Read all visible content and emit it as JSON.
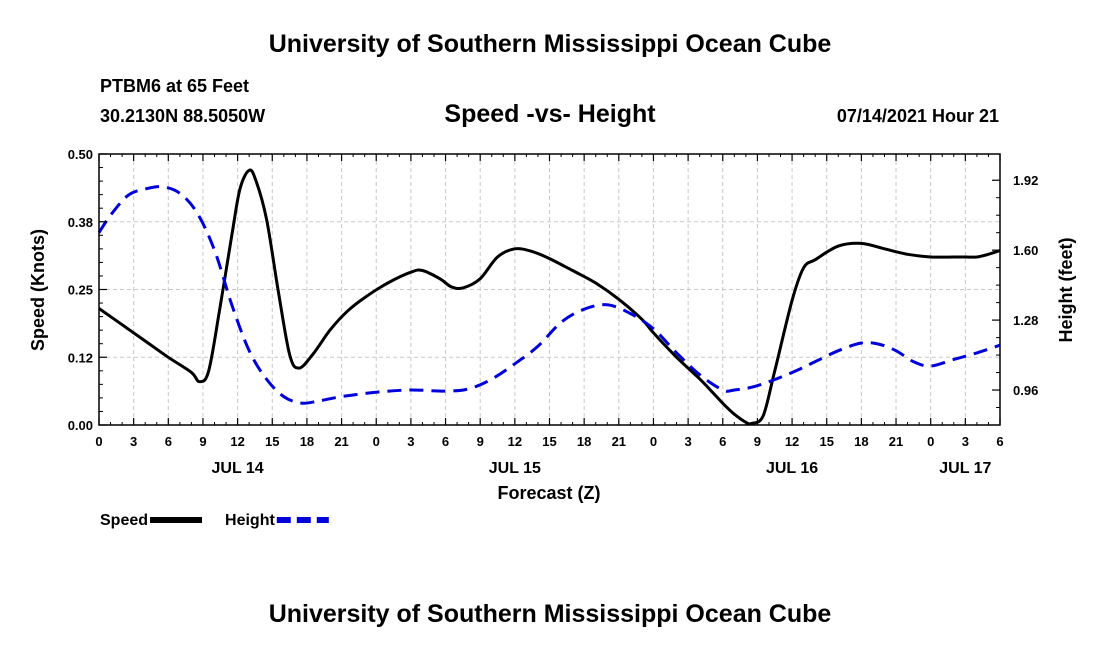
{
  "header": {
    "title": "University of Southern Mississippi Ocean Cube",
    "station": "PTBM6 at 65 Feet",
    "coords": "30.2130N  88.5050W",
    "datetime": "07/14/2021 Hour 21"
  },
  "footer": {
    "title": "University of Southern Mississippi Ocean Cube"
  },
  "chart_data": {
    "type": "line",
    "title": "Speed -vs- Height",
    "xlabel": "Forecast (Z)",
    "ylabel_left": "Speed (Knots)",
    "ylabel_right": "Height (feet)",
    "x_hours_range": [
      0,
      78
    ],
    "x_tick_labels": [
      "0",
      "3",
      "6",
      "9",
      "12",
      "15",
      "18",
      "21",
      "0",
      "3",
      "6",
      "9",
      "12",
      "15",
      "18",
      "21",
      "0",
      "3",
      "6",
      "9",
      "12",
      "15",
      "18",
      "21",
      "0",
      "3",
      "6"
    ],
    "date_labels": [
      {
        "label": "JUL 14",
        "hour": 12
      },
      {
        "label": "JUL 15",
        "hour": 36
      },
      {
        "label": "JUL 16",
        "hour": 60
      },
      {
        "label": "JUL 17",
        "hour": 75
      }
    ],
    "y_left": {
      "range": [
        0,
        0.5
      ],
      "ticks": [
        0,
        0.125,
        0.25,
        0.375,
        0.5
      ],
      "tick_labels": [
        "0.00",
        "0.12",
        "0.25",
        "0.38",
        "0.50"
      ]
    },
    "y_right": {
      "range": [
        0.8,
        2.04
      ],
      "ticks": [
        0.96,
        1.28,
        1.6,
        1.92
      ],
      "tick_labels": [
        "0.96",
        "1.28",
        "1.60",
        "1.92"
      ]
    },
    "series": [
      {
        "name": "Speed",
        "axis": "left",
        "color": "#000000",
        "dash": "solid",
        "x": [
          0,
          2,
          4,
          6,
          8,
          8.7,
          9.5,
          10.5,
          11.5,
          12.2,
          13,
          13.6,
          14.5,
          15.5,
          16.5,
          17.3,
          18.5,
          20,
          21.5,
          23,
          25,
          27,
          28,
          29.5,
          30.5,
          31.5,
          33,
          34.5,
          36,
          37.5,
          39,
          41,
          43,
          45,
          47,
          48,
          50,
          52,
          53,
          54,
          55,
          56,
          56.5,
          57.5,
          58.5,
          60,
          61,
          62,
          64,
          66,
          68,
          70,
          72,
          74,
          75,
          76,
          77,
          78
        ],
        "values": [
          0.215,
          0.185,
          0.155,
          0.125,
          0.097,
          0.08,
          0.1,
          0.22,
          0.35,
          0.435,
          0.47,
          0.45,
          0.38,
          0.25,
          0.13,
          0.105,
          0.13,
          0.175,
          0.21,
          0.235,
          0.262,
          0.282,
          0.285,
          0.27,
          0.255,
          0.253,
          0.27,
          0.31,
          0.325,
          0.32,
          0.307,
          0.285,
          0.262,
          0.232,
          0.195,
          0.17,
          0.125,
          0.085,
          0.063,
          0.04,
          0.02,
          0.005,
          0.003,
          0.017,
          0.1,
          0.23,
          0.29,
          0.305,
          0.33,
          0.335,
          0.325,
          0.315,
          0.31,
          0.31,
          0.31,
          0.31,
          0.315,
          0.322
        ]
      },
      {
        "name": "Height",
        "axis": "right",
        "color": "#0000dd",
        "dash": "dashed",
        "x": [
          0,
          1,
          2.5,
          4,
          5.5,
          7,
          8.5,
          10,
          11.5,
          13,
          14.5,
          16,
          17.5,
          19,
          21,
          24,
          27,
          30,
          32,
          34,
          36,
          38,
          40,
          42,
          44,
          46,
          48,
          50,
          52,
          54,
          55,
          57,
          60,
          62,
          64,
          66,
          67.5,
          69,
          70.5,
          72,
          74,
          76,
          78
        ],
        "values": [
          1.68,
          1.76,
          1.85,
          1.88,
          1.89,
          1.86,
          1.77,
          1.6,
          1.35,
          1.14,
          1.01,
          0.93,
          0.9,
          0.91,
          0.93,
          0.95,
          0.96,
          0.955,
          0.965,
          1.01,
          1.08,
          1.16,
          1.27,
          1.33,
          1.35,
          1.31,
          1.24,
          1.13,
          1.03,
          0.96,
          0.96,
          0.98,
          1.04,
          1.09,
          1.14,
          1.175,
          1.17,
          1.14,
          1.09,
          1.07,
          1.1,
          1.13,
          1.165
        ]
      }
    ],
    "legend": [
      {
        "label": "Speed",
        "color": "#000000",
        "dash": "solid"
      },
      {
        "label": "Height",
        "color": "#0000dd",
        "dash": "dashed"
      }
    ],
    "grid": true
  }
}
